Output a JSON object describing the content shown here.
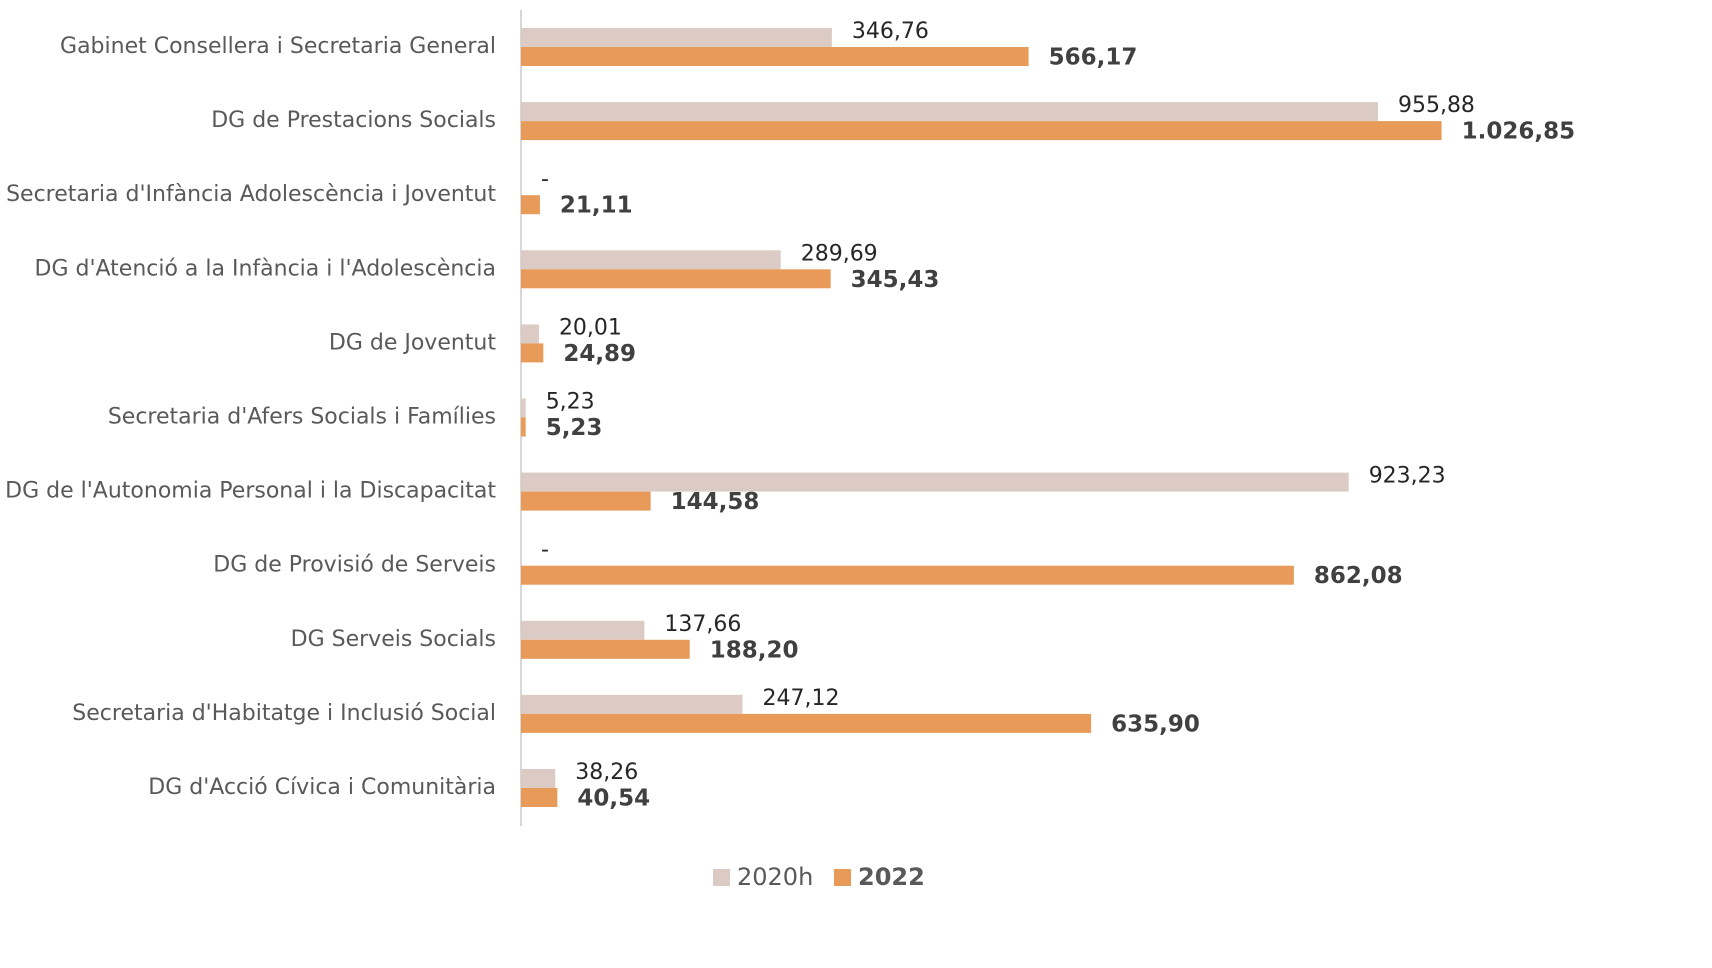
{
  "chart_data": {
    "type": "barh",
    "categories": [
      "Gabinet Consellera i Secretaria General",
      "DG de Prestacions Socials",
      "Secretaria d'Infància Adolescència i Joventut",
      "DG d'Atenció a la Infància i l'Adolescència",
      "DG de Joventut",
      "Secretaria d'Afers Socials i Famílies",
      "DG de l'Autonomia Personal i la Discapacitat",
      "DG de Provisió de Serveis",
      "DG Serveis Socials",
      "Secretaria d'Habitatge i Inclusió Social",
      "DG d'Acció Cívica i Comunitària"
    ],
    "series": [
      {
        "name": "2020h",
        "color": "#dccbc4",
        "values": [
          346.76,
          955.88,
          null,
          289.69,
          20.01,
          5.23,
          923.23,
          null,
          137.66,
          247.12,
          38.26
        ],
        "value_labels": [
          "346,76",
          "955,88",
          "-",
          "289,69",
          "20,01",
          "5,23",
          "923,23",
          "-",
          "137,66",
          "247,12",
          "38,26"
        ]
      },
      {
        "name": "2022",
        "color": "#e89a58",
        "values": [
          566.17,
          1026.85,
          21.11,
          345.43,
          24.89,
          5.23,
          144.58,
          862.08,
          188.2,
          635.9,
          40.54
        ],
        "value_labels": [
          "566,17",
          "1.026,85",
          "21,11",
          "345,43",
          "24,89",
          "5,23",
          "144,58",
          "862,08",
          "188,20",
          "635,90",
          "40,54"
        ]
      }
    ],
    "xlim": [
      0,
      1150
    ],
    "legend": "bottom"
  }
}
